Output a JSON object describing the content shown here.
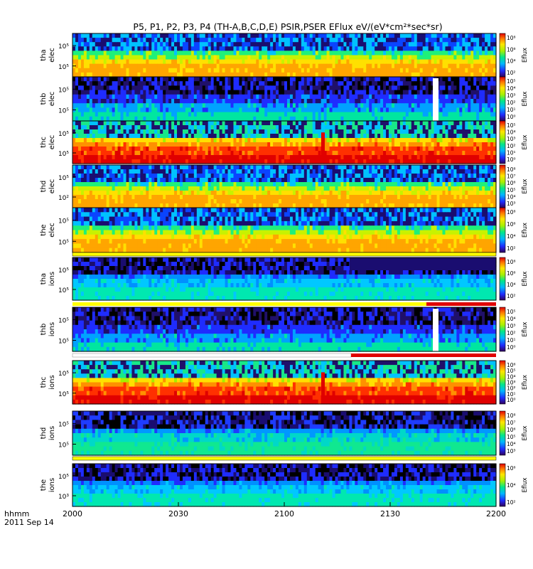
{
  "chart_data": {
    "type": "heatmap",
    "title": "P5, P1, P2, P3, P4 (TH-A,B,C,D,E) PSIR,PSER EFlux eV/(eV*cm²*sec*sr)",
    "x_axis": {
      "name": "hhmm",
      "date": "2011 Sep 14",
      "ticks": [
        "2000",
        "2030",
        "2100",
        "2130",
        "2200"
      ]
    },
    "colorbar_label": "Eflux",
    "panels": [
      {
        "probe": "tha",
        "species": "elec",
        "ylabels": [
          "10⁵",
          "10⁵"
        ],
        "cbar_ticks": [
          "10⁸",
          "10⁶",
          "10⁴",
          "10²"
        ],
        "flag_bar": null
      },
      {
        "probe": "thb",
        "species": "elec",
        "ylabels": [
          "10⁵",
          "10⁵"
        ],
        "cbar_ticks": [
          "10⁵",
          "10⁴",
          "10³",
          "10²",
          "10¹",
          "10⁰"
        ],
        "flag_bar": null
      },
      {
        "probe": "thc",
        "species": "elec",
        "ylabels": [
          "10⁵",
          "10⁵"
        ],
        "cbar_ticks": [
          "10⁵",
          "10⁴",
          "10³",
          "10²",
          "10¹",
          "10⁰"
        ],
        "flag_bar": null
      },
      {
        "probe": "thd",
        "species": "elec",
        "ylabels": [
          "10⁵",
          "10²"
        ],
        "cbar_ticks": [
          "10⁸",
          "10⁷",
          "10⁶",
          "10⁵",
          "10⁴",
          "10³"
        ],
        "flag_bar": null
      },
      {
        "probe": "the",
        "species": "elec",
        "ylabels": [
          "10⁵",
          "10⁵"
        ],
        "cbar_ticks": [
          "10⁸",
          "10⁶",
          "10⁴",
          "10²"
        ],
        "flag_bar": "yellow"
      },
      {
        "probe": "tha",
        "species": "ions",
        "ylabels": [
          "10⁵",
          "10⁵"
        ],
        "cbar_ticks": [
          "10⁸",
          "10⁶",
          "10⁴",
          "10²"
        ],
        "flag_bar": "yellow-red"
      },
      {
        "probe": "thb",
        "species": "ions",
        "ylabels": [
          "10⁵",
          "10⁵"
        ],
        "cbar_ticks": [
          "10⁵",
          "10⁴",
          "10³",
          "10²",
          "10¹",
          "10⁰"
        ],
        "flag_bar": "white-red"
      },
      {
        "probe": "thc",
        "species": "ions",
        "ylabels": [
          "10⁵",
          "10⁵"
        ],
        "cbar_ticks": [
          "10⁶",
          "10⁵",
          "10⁴",
          "10³",
          "10²",
          "10¹",
          "10⁰"
        ],
        "flag_bar": null
      },
      {
        "probe": "thd",
        "species": "ions",
        "ylabels": [
          "10⁵",
          "10⁵"
        ],
        "cbar_ticks": [
          "10⁸",
          "10⁷",
          "10⁶",
          "10⁵",
          "10⁴",
          "10³"
        ],
        "flag_bar": "yellow"
      },
      {
        "probe": "the",
        "species": "ions",
        "ylabels": [
          "10⁵",
          "10³"
        ],
        "cbar_ticks": [
          "10⁶",
          "10⁴",
          "10²"
        ],
        "flag_bar": null
      }
    ]
  }
}
